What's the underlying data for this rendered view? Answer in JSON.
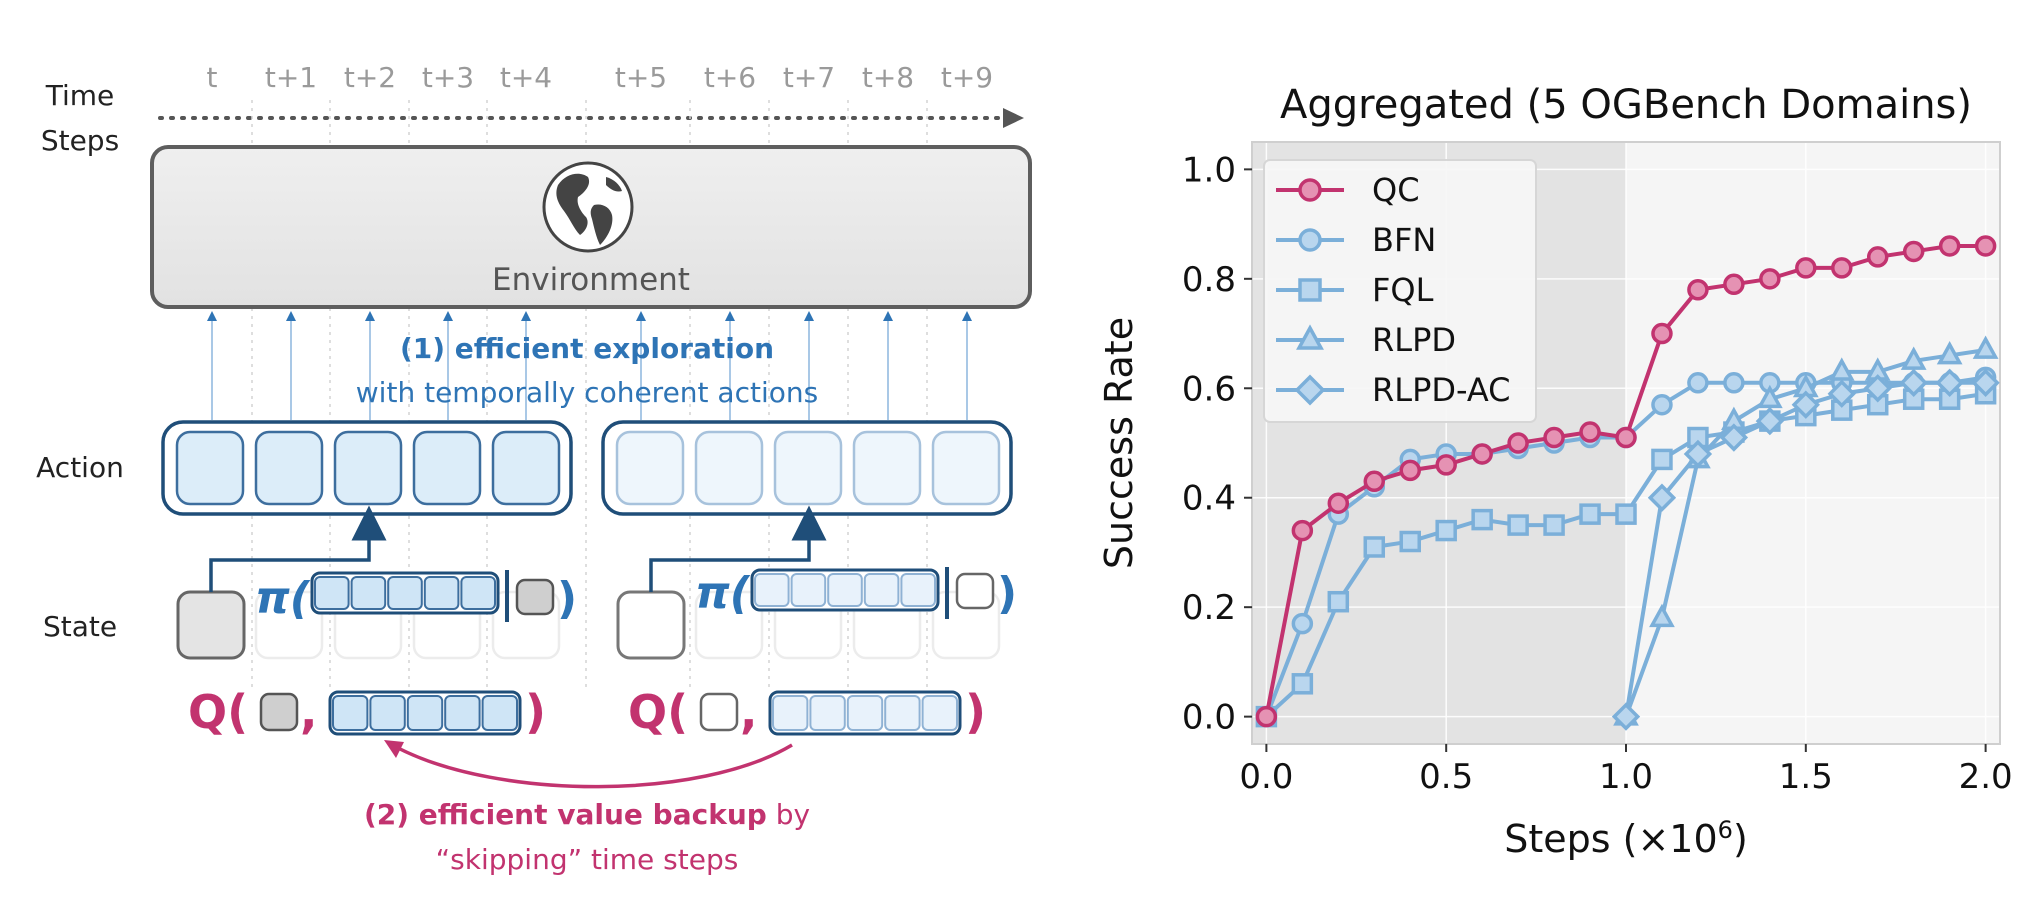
{
  "diagram": {
    "time_label_line1": "Time",
    "time_label_line2": "Steps",
    "time_steps": [
      "t",
      "t+1",
      "t+2",
      "t+3",
      "t+4",
      "t+5",
      "t+6",
      "t+7",
      "t+8",
      "t+9"
    ],
    "environment_label": "Environment",
    "environment_icon": "globe-icon",
    "exploration_title": "(1) efficient exploration",
    "exploration_subtitle": "with temporally coherent actions",
    "action_label": "Action",
    "state_label": "State",
    "policy_symbol": "π(",
    "policy_close": ")",
    "q_symbol": "Q(",
    "q_comma": ",",
    "q_close": ")",
    "backup_title": "(2) efficient value backup",
    "backup_by": " by",
    "backup_subtitle": "“skipping” time steps",
    "colors": {
      "blue": "#2e74b5",
      "navy": "#1f4e79",
      "magenta": "#c2336f",
      "gray": "#5a5a5a"
    }
  },
  "chart_data": {
    "type": "line",
    "title": "Aggregated (5 OGBench Domains)",
    "xlabel": "Steps (×10",
    "xlabel_exp": "6",
    "xlabel_close": ")",
    "ylabel": "Success Rate",
    "xlim": [
      -0.04,
      2.04
    ],
    "ylim": [
      -0.05,
      1.05
    ],
    "xticks": [
      "0.0",
      "0.5",
      "1.0",
      "1.5",
      "2.0"
    ],
    "yticks": [
      "0.0",
      "0.2",
      "0.4",
      "0.6",
      "0.8",
      "1.0"
    ],
    "grid": true,
    "legend_position": "top-left",
    "shaded_region": [
      -0.04,
      1.0
    ],
    "series": [
      {
        "name": "QC",
        "marker": "circle",
        "color": "#c2336f",
        "x": [
          0,
          0.1,
          0.2,
          0.3,
          0.4,
          0.5,
          0.6,
          0.7,
          0.8,
          0.9,
          1.0,
          1.1,
          1.2,
          1.3,
          1.4,
          1.5,
          1.6,
          1.7,
          1.8,
          1.9,
          2.0
        ],
        "y": [
          0.0,
          0.34,
          0.39,
          0.43,
          0.45,
          0.46,
          0.48,
          0.5,
          0.51,
          0.52,
          0.51,
          0.7,
          0.78,
          0.79,
          0.8,
          0.82,
          0.82,
          0.84,
          0.85,
          0.86,
          0.86
        ]
      },
      {
        "name": "BFN",
        "marker": "circle",
        "color": "#7bafd9",
        "x": [
          0,
          0.1,
          0.2,
          0.3,
          0.4,
          0.5,
          0.6,
          0.7,
          0.8,
          0.9,
          1.0,
          1.1,
          1.2,
          1.3,
          1.4,
          1.5,
          1.6,
          1.7,
          1.8,
          1.9,
          2.0
        ],
        "y": [
          0.0,
          0.17,
          0.37,
          0.42,
          0.47,
          0.48,
          0.48,
          0.49,
          0.5,
          0.51,
          0.51,
          0.57,
          0.61,
          0.61,
          0.61,
          0.61,
          0.61,
          0.61,
          0.61,
          0.61,
          0.62
        ]
      },
      {
        "name": "FQL",
        "marker": "square",
        "color": "#7bafd9",
        "x": [
          0,
          0.1,
          0.2,
          0.3,
          0.4,
          0.5,
          0.6,
          0.7,
          0.8,
          0.9,
          1.0,
          1.1,
          1.2,
          1.3,
          1.4,
          1.5,
          1.6,
          1.7,
          1.8,
          1.9,
          2.0
        ],
        "y": [
          0.0,
          0.06,
          0.21,
          0.31,
          0.32,
          0.34,
          0.36,
          0.35,
          0.35,
          0.37,
          0.37,
          0.47,
          0.51,
          0.52,
          0.54,
          0.55,
          0.56,
          0.57,
          0.58,
          0.58,
          0.59
        ]
      },
      {
        "name": "RLPD",
        "marker": "triangle",
        "color": "#7bafd9",
        "x": [
          1.0,
          1.1,
          1.2,
          1.3,
          1.4,
          1.5,
          1.6,
          1.7,
          1.8,
          1.9,
          2.0
        ],
        "y": [
          0.0,
          0.18,
          0.47,
          0.54,
          0.58,
          0.6,
          0.63,
          0.63,
          0.65,
          0.66,
          0.67
        ]
      },
      {
        "name": "RLPD-AC",
        "marker": "diamond",
        "color": "#7bafd9",
        "x": [
          1.0,
          1.1,
          1.2,
          1.3,
          1.4,
          1.5,
          1.6,
          1.7,
          1.8,
          1.9,
          2.0
        ],
        "y": [
          0.0,
          0.4,
          0.48,
          0.51,
          0.54,
          0.57,
          0.59,
          0.6,
          0.61,
          0.61,
          0.61
        ]
      }
    ]
  }
}
